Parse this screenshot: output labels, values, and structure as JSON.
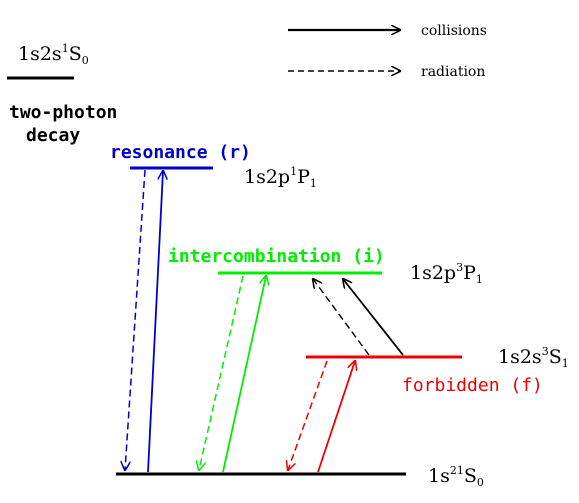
{
  "colors": {
    "resonance": "#0000cc",
    "intercombination": "#00ee00",
    "forbidden": "#ee0000",
    "neutral": "#000000"
  },
  "legend": {
    "collisions": "collisions",
    "radiation": "radiation"
  },
  "levels": {
    "singlet_2s": {
      "config": "1s2s",
      "sup": "1",
      "term": "S",
      "sub": "0"
    },
    "resonance": {
      "config": "1s2p",
      "sup": "1",
      "term": "P",
      "sub": "1"
    },
    "intercombination": {
      "config": "1s2p",
      "sup": "3",
      "term": "P",
      "sub": "1"
    },
    "forbidden": {
      "config": "1s2s",
      "sup": "3",
      "term": "S",
      "sub": "1"
    },
    "ground": {
      "config": "1s",
      "sup": "2",
      "term": "",
      "sup2": "1",
      "term2": "S",
      "sub": "0"
    }
  },
  "lines": {
    "resonance": "resonance (r)",
    "intercombination": "intercombination (i)",
    "forbidden": "forbidden (f)"
  },
  "two_photon": {
    "line1": "two-photon",
    "line2": "decay"
  }
}
